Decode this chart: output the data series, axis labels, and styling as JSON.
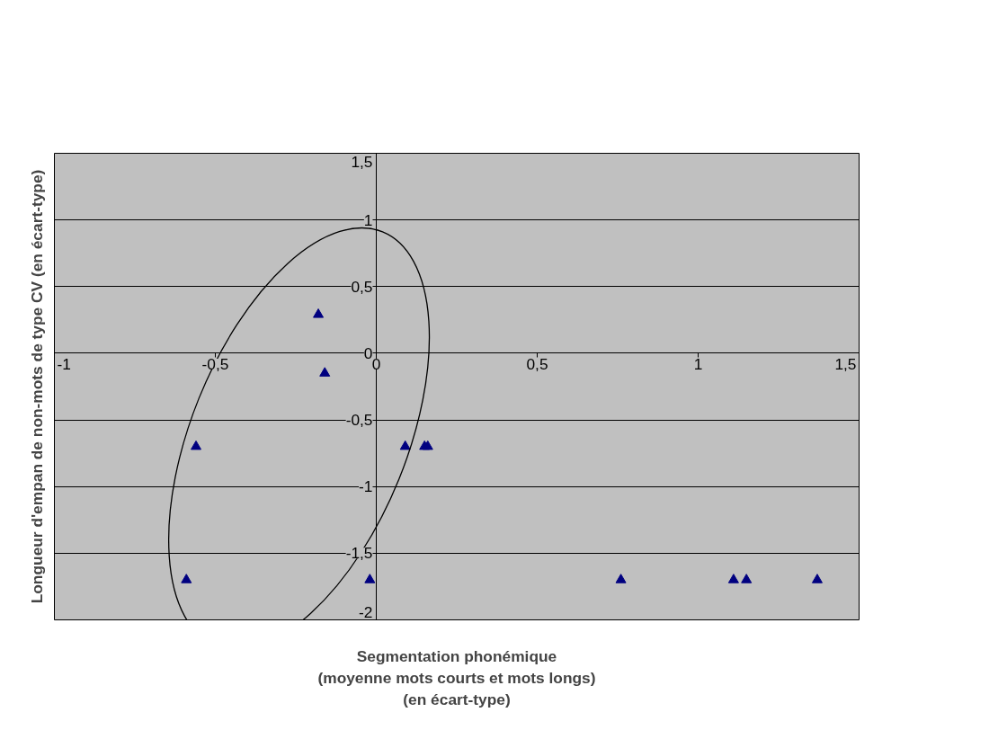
{
  "chart_data": {
    "type": "scatter",
    "xlabel": "Segmentation phonémique\n(moyenne mots courts et mots longs)\n(en écart-type)",
    "ylabel": "Longueur d'empan de non-mots de type CV (en écart-type)",
    "x": [
      -0.59,
      -0.56,
      -0.18,
      -0.16,
      -0.02,
      0.09,
      0.15,
      0.16,
      0.76,
      1.11,
      1.15,
      1.37
    ],
    "values": [
      -1.7,
      -0.7,
      0.29,
      -0.15,
      -1.7,
      -0.7,
      -0.7,
      -0.7,
      -1.7,
      -1.7,
      -1.7,
      -1.7
    ],
    "color": "#000080",
    "marker": "triangle",
    "xlim": [
      -1,
      1.5
    ],
    "ylim": [
      -2,
      1.5
    ],
    "xticks": [
      {
        "value": -1,
        "label": "-1"
      },
      {
        "value": -0.5,
        "label": "-0,5"
      },
      {
        "value": 0,
        "label": "0"
      },
      {
        "value": 0.5,
        "label": "0,5"
      },
      {
        "value": 1,
        "label": "1"
      },
      {
        "value": 1.5,
        "label": "1,5"
      }
    ],
    "yticks": [
      {
        "value": -2,
        "label": "-2"
      },
      {
        "value": -1.5,
        "label": "-1,5"
      },
      {
        "value": -1,
        "label": "-1"
      },
      {
        "value": -0.5,
        "label": "-0,5"
      },
      {
        "value": 0,
        "label": "0"
      },
      {
        "value": 0.5,
        "label": "0,5"
      },
      {
        "value": 1,
        "label": "1"
      },
      {
        "value": 1.5,
        "label": "1,5"
      }
    ],
    "grid": "y"
  }
}
